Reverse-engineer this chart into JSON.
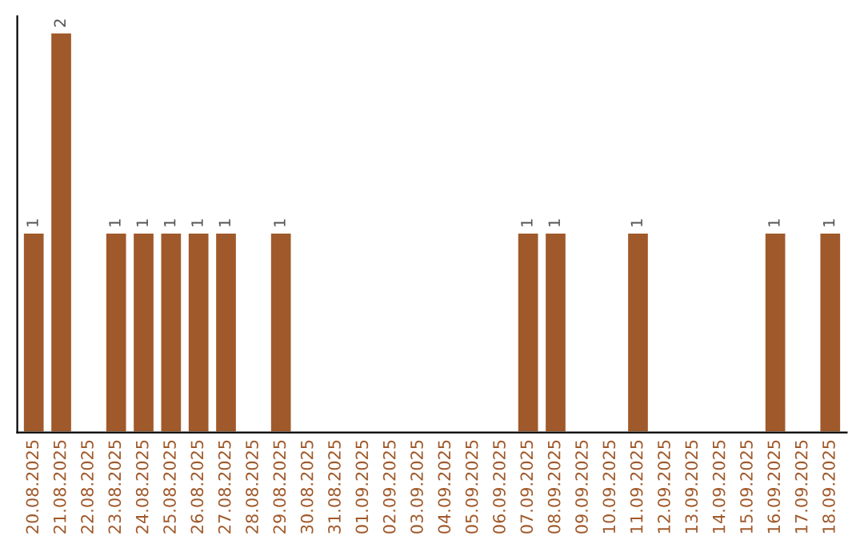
{
  "chart_data": {
    "type": "bar",
    "categories": [
      "20.08.2025",
      "21.08.2025",
      "22.08.2025",
      "23.08.2025",
      "24.08.2025",
      "25.08.2025",
      "26.08.2025",
      "27.08.2025",
      "28.08.2025",
      "29.08.2025",
      "30.08.2025",
      "31.08.2025",
      "01.09.2025",
      "02.09.2025",
      "03.09.2025",
      "04.09.2025",
      "05.09.2025",
      "06.09.2025",
      "07.09.2025",
      "08.09.2025",
      "09.09.2025",
      "10.09.2025",
      "11.09.2025",
      "12.09.2025",
      "13.09.2025",
      "14.09.2025",
      "15.09.2025",
      "16.09.2025",
      "17.09.2025",
      "18.09.2025"
    ],
    "values": [
      1,
      2,
      0,
      1,
      1,
      1,
      1,
      1,
      0,
      1,
      0,
      0,
      0,
      0,
      0,
      0,
      0,
      0,
      1,
      1,
      0,
      0,
      1,
      0,
      0,
      0,
      0,
      1,
      0,
      1
    ],
    "value_labels": [
      "1",
      "2",
      null,
      "1",
      "1",
      "1",
      "1",
      "1",
      null,
      "1",
      null,
      null,
      null,
      null,
      null,
      null,
      null,
      null,
      "1",
      "1",
      null,
      null,
      "1",
      null,
      null,
      null,
      null,
      "1",
      null,
      "1"
    ],
    "color": "#a0592a",
    "tick_labels": "x",
    "grid": false,
    "legend": false
  }
}
